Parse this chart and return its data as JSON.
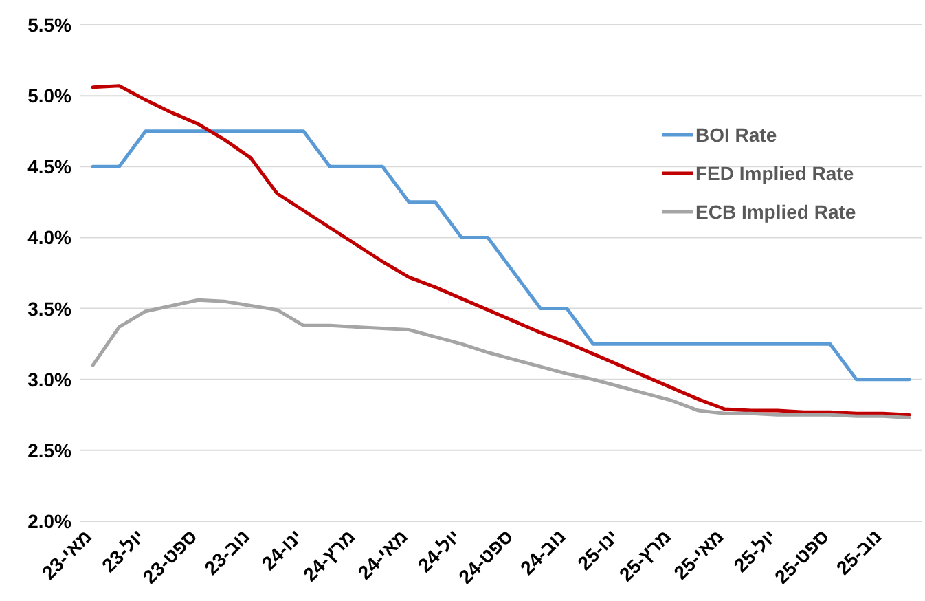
{
  "chart_data": {
    "type": "line",
    "categories": [
      "מאי-23",
      null,
      "יול-23",
      null,
      "ספט-23",
      null,
      "נוב-23",
      null,
      "ינו-24",
      null,
      "מרץ-24",
      null,
      "מאי-24",
      null,
      "יול-24",
      null,
      "ספט-24",
      null,
      "נוב-24",
      null,
      "ינו-25",
      null,
      "מרץ-25",
      null,
      "מאי-25",
      null,
      "יול-25",
      null,
      "ספט-25",
      null,
      "נוב-25",
      null
    ],
    "series": [
      {
        "name": "BOI Rate",
        "color": "#5b9bd5",
        "values": [
          4.5,
          4.5,
          4.75,
          4.75,
          4.75,
          4.75,
          4.75,
          4.75,
          4.75,
          4.5,
          4.5,
          4.5,
          4.25,
          4.25,
          4.0,
          4.0,
          3.75,
          3.5,
          3.5,
          3.25,
          3.25,
          3.25,
          3.25,
          3.25,
          3.25,
          3.25,
          3.25,
          3.25,
          3.25,
          3.0,
          3.0,
          3.0
        ]
      },
      {
        "name": "FED Implied Rate",
        "color": "#c00000",
        "values": [
          5.06,
          5.07,
          4.97,
          4.88,
          4.8,
          4.69,
          4.56,
          4.31,
          4.19,
          4.07,
          3.95,
          3.83,
          3.72,
          3.65,
          3.57,
          3.49,
          3.41,
          3.33,
          3.26,
          3.18,
          3.1,
          3.02,
          2.94,
          2.86,
          2.79,
          2.78,
          2.78,
          2.77,
          2.77,
          2.76,
          2.76,
          2.75
        ]
      },
      {
        "name": "ECB Implied Rate",
        "color": "#a5a5a5",
        "values": [
          3.1,
          3.37,
          3.48,
          3.52,
          3.56,
          3.55,
          3.52,
          3.49,
          3.38,
          3.38,
          3.37,
          3.36,
          3.35,
          3.3,
          3.25,
          3.19,
          3.14,
          3.09,
          3.04,
          3.0,
          2.95,
          2.9,
          2.85,
          2.78,
          2.76,
          2.76,
          2.75,
          2.75,
          2.75,
          2.74,
          2.74,
          2.73
        ]
      }
    ],
    "ylim": [
      2.0,
      5.5
    ],
    "yticks": [
      {
        "value": 2.0,
        "label": "2.0%"
      },
      {
        "value": 2.5,
        "label": "2.5%"
      },
      {
        "value": 3.0,
        "label": "3.0%"
      },
      {
        "value": 3.5,
        "label": "3.5%"
      },
      {
        "value": 4.0,
        "label": "4.0%"
      },
      {
        "value": 4.5,
        "label": "4.5%"
      },
      {
        "value": 5.0,
        "label": "5.0%"
      },
      {
        "value": 5.5,
        "label": "5.5%"
      }
    ],
    "grid": "y",
    "legend": "top right",
    "marker": "none",
    "line_style": "solid"
  }
}
